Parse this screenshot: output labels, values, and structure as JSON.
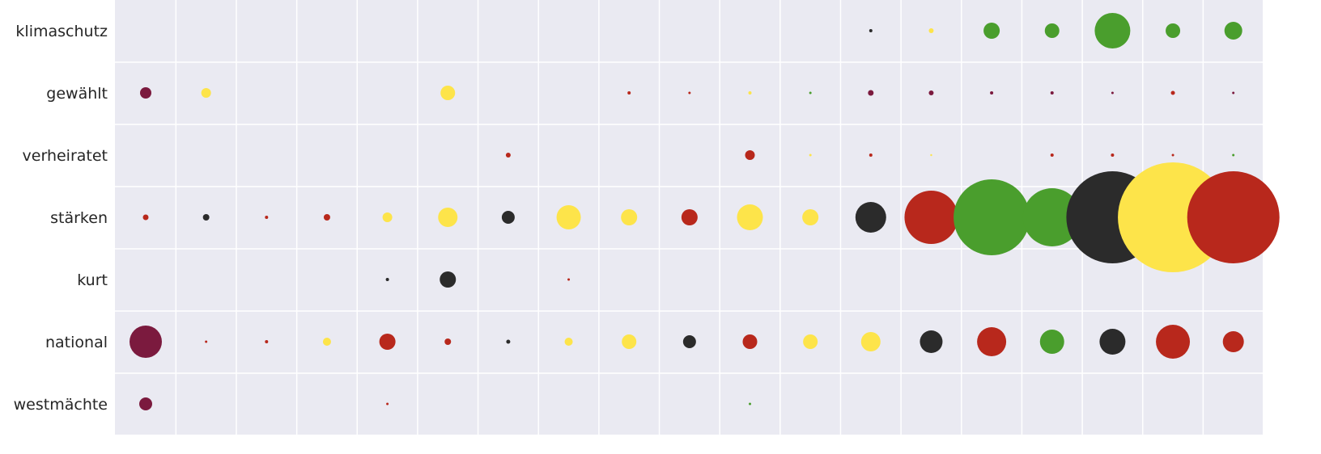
{
  "chart_data": {
    "type": "scatter",
    "title": "",
    "xlabel": "",
    "ylabel": "",
    "grid": true,
    "legend": "none",
    "rows": [
      "klimaschutz",
      "gewählt",
      "verheiratet",
      "stärken",
      "kurt",
      "national",
      "westmächte"
    ],
    "x_count": 19,
    "palette": {
      "background": "#eaeaf2",
      "grid": "#ffffff",
      "purple": "#7b1a3e",
      "yellow": "#fde44a",
      "red": "#b8281c",
      "black": "#2b2b2b",
      "green": "#4a9e2d"
    },
    "points": [
      {
        "row": "klimaschutz",
        "col": 13,
        "size": 2,
        "color": "black"
      },
      {
        "row": "klimaschutz",
        "col": 14,
        "size": 3,
        "color": "yellow"
      },
      {
        "row": "klimaschutz",
        "col": 15,
        "size": 10,
        "color": "green"
      },
      {
        "row": "klimaschutz",
        "col": 16,
        "size": 9,
        "color": "green"
      },
      {
        "row": "klimaschutz",
        "col": 17,
        "size": 22,
        "color": "green"
      },
      {
        "row": "klimaschutz",
        "col": 18,
        "size": 9,
        "color": "green"
      },
      {
        "row": "klimaschutz",
        "col": 19,
        "size": 11,
        "color": "green"
      },
      {
        "row": "gewählt",
        "col": 1,
        "size": 7,
        "color": "purple"
      },
      {
        "row": "gewählt",
        "col": 2,
        "size": 6,
        "color": "yellow"
      },
      {
        "row": "gewählt",
        "col": 6,
        "size": 9,
        "color": "yellow"
      },
      {
        "row": "gewählt",
        "col": 9,
        "size": 2,
        "color": "red"
      },
      {
        "row": "gewählt",
        "col": 10,
        "size": 1.5,
        "color": "red"
      },
      {
        "row": "gewählt",
        "col": 11,
        "size": 2,
        "color": "yellow"
      },
      {
        "row": "gewählt",
        "col": 12,
        "size": 1.5,
        "color": "green"
      },
      {
        "row": "gewählt",
        "col": 13,
        "size": 3.5,
        "color": "purple"
      },
      {
        "row": "gewählt",
        "col": 14,
        "size": 3,
        "color": "purple"
      },
      {
        "row": "gewählt",
        "col": 15,
        "size": 2,
        "color": "purple"
      },
      {
        "row": "gewählt",
        "col": 16,
        "size": 2,
        "color": "purple"
      },
      {
        "row": "gewählt",
        "col": 17,
        "size": 1.5,
        "color": "purple"
      },
      {
        "row": "gewählt",
        "col": 18,
        "size": 2.5,
        "color": "red"
      },
      {
        "row": "gewählt",
        "col": 19,
        "size": 1.5,
        "color": "purple"
      },
      {
        "row": "verheiratet",
        "col": 7,
        "size": 3,
        "color": "red"
      },
      {
        "row": "verheiratet",
        "col": 11,
        "size": 6,
        "color": "red"
      },
      {
        "row": "verheiratet",
        "col": 12,
        "size": 1.5,
        "color": "yellow"
      },
      {
        "row": "verheiratet",
        "col": 13,
        "size": 2,
        "color": "red"
      },
      {
        "row": "verheiratet",
        "col": 14,
        "size": 1.2,
        "color": "yellow"
      },
      {
        "row": "verheiratet",
        "col": 16,
        "size": 2,
        "color": "red"
      },
      {
        "row": "verheiratet",
        "col": 17,
        "size": 2,
        "color": "red"
      },
      {
        "row": "verheiratet",
        "col": 18,
        "size": 1.5,
        "color": "red"
      },
      {
        "row": "verheiratet",
        "col": 19,
        "size": 1.5,
        "color": "green"
      },
      {
        "row": "stärken",
        "col": 1,
        "size": 3.5,
        "color": "red"
      },
      {
        "row": "stärken",
        "col": 2,
        "size": 4,
        "color": "black"
      },
      {
        "row": "stärken",
        "col": 3,
        "size": 2,
        "color": "red"
      },
      {
        "row": "stärken",
        "col": 4,
        "size": 4,
        "color": "red"
      },
      {
        "row": "stärken",
        "col": 5,
        "size": 6,
        "color": "yellow"
      },
      {
        "row": "stärken",
        "col": 6,
        "size": 12,
        "color": "yellow"
      },
      {
        "row": "stärken",
        "col": 7,
        "size": 8,
        "color": "black"
      },
      {
        "row": "stärken",
        "col": 8,
        "size": 15,
        "color": "yellow"
      },
      {
        "row": "stärken",
        "col": 9,
        "size": 10,
        "color": "yellow"
      },
      {
        "row": "stärken",
        "col": 10,
        "size": 10,
        "color": "red"
      },
      {
        "row": "stärken",
        "col": 11,
        "size": 16,
        "color": "yellow"
      },
      {
        "row": "stärken",
        "col": 12,
        "size": 10,
        "color": "yellow"
      },
      {
        "row": "stärken",
        "col": 13,
        "size": 19,
        "color": "black"
      },
      {
        "row": "stärken",
        "col": 14,
        "size": 33,
        "color": "red"
      },
      {
        "row": "stärken",
        "col": 15,
        "size": 47,
        "color": "green"
      },
      {
        "row": "stärken",
        "col": 16,
        "size": 36,
        "color": "green"
      },
      {
        "row": "stärken",
        "col": 17,
        "size": 57,
        "color": "black"
      },
      {
        "row": "stärken",
        "col": 18,
        "size": 68,
        "color": "yellow"
      },
      {
        "row": "stärken",
        "col": 19,
        "size": 57,
        "color": "red"
      },
      {
        "row": "kurt",
        "col": 5,
        "size": 2,
        "color": "black"
      },
      {
        "row": "kurt",
        "col": 6,
        "size": 10,
        "color": "black"
      },
      {
        "row": "kurt",
        "col": 8,
        "size": 1.5,
        "color": "red"
      },
      {
        "row": "national",
        "col": 1,
        "size": 20,
        "color": "purple"
      },
      {
        "row": "national",
        "col": 2,
        "size": 1.5,
        "color": "red"
      },
      {
        "row": "national",
        "col": 3,
        "size": 2,
        "color": "red"
      },
      {
        "row": "national",
        "col": 4,
        "size": 5,
        "color": "yellow"
      },
      {
        "row": "national",
        "col": 5,
        "size": 10,
        "color": "red"
      },
      {
        "row": "national",
        "col": 6,
        "size": 4,
        "color": "red"
      },
      {
        "row": "national",
        "col": 7,
        "size": 2.5,
        "color": "black"
      },
      {
        "row": "national",
        "col": 8,
        "size": 5,
        "color": "yellow"
      },
      {
        "row": "national",
        "col": 9,
        "size": 9,
        "color": "yellow"
      },
      {
        "row": "national",
        "col": 10,
        "size": 8,
        "color": "black"
      },
      {
        "row": "national",
        "col": 11,
        "size": 9,
        "color": "red"
      },
      {
        "row": "national",
        "col": 12,
        "size": 9,
        "color": "yellow"
      },
      {
        "row": "national",
        "col": 13,
        "size": 12,
        "color": "yellow"
      },
      {
        "row": "national",
        "col": 14,
        "size": 14,
        "color": "black"
      },
      {
        "row": "national",
        "col": 15,
        "size": 18,
        "color": "red"
      },
      {
        "row": "national",
        "col": 16,
        "size": 15,
        "color": "green"
      },
      {
        "row": "national",
        "col": 17,
        "size": 16,
        "color": "black"
      },
      {
        "row": "national",
        "col": 18,
        "size": 21,
        "color": "red"
      },
      {
        "row": "national",
        "col": 19,
        "size": 13,
        "color": "red"
      },
      {
        "row": "westmächte",
        "col": 1,
        "size": 8,
        "color": "purple"
      },
      {
        "row": "westmächte",
        "col": 5,
        "size": 1.5,
        "color": "red"
      },
      {
        "row": "westmächte",
        "col": 11,
        "size": 1.5,
        "color": "green"
      }
    ]
  }
}
